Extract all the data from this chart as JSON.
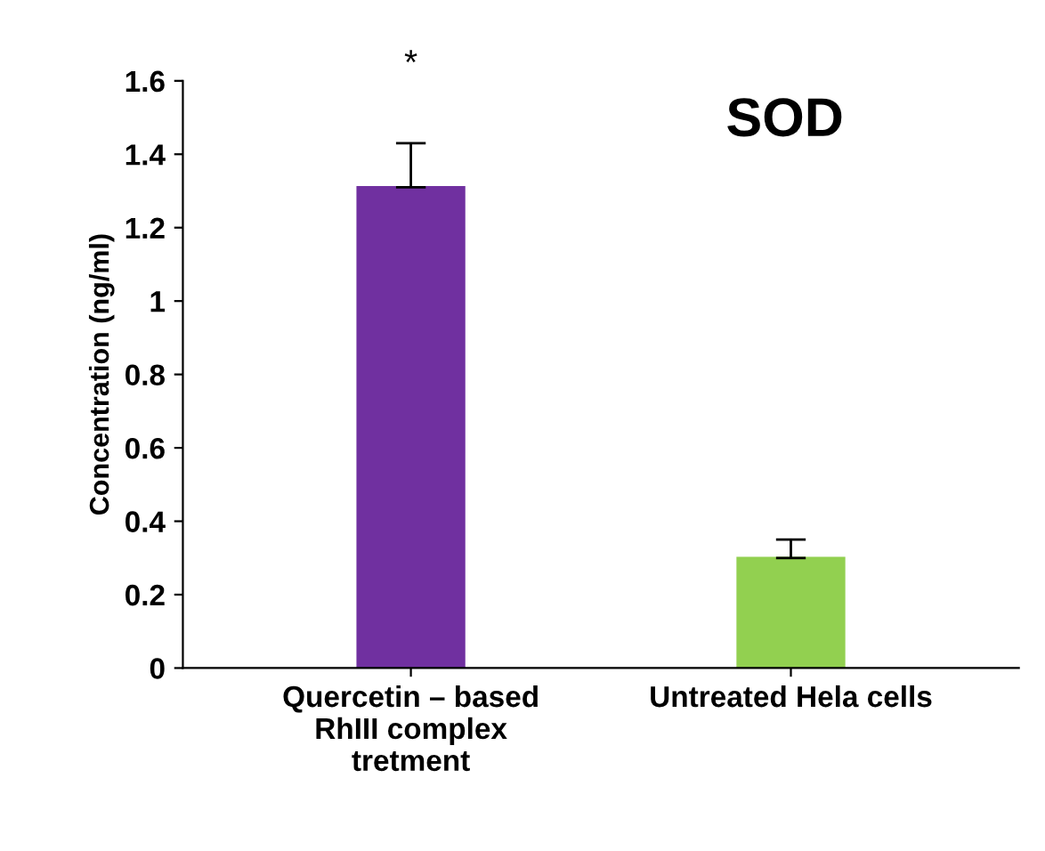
{
  "chart_data": {
    "type": "bar",
    "title": "SOD",
    "ylabel": "Concentration (ng/ml)",
    "categories": [
      "Quercetin – based\nRhIII complex\ntretment",
      "Untreated Hela cells"
    ],
    "values": [
      1.31,
      0.3
    ],
    "colors": [
      "#7030a0",
      "#92d050"
    ],
    "errors": [
      0.12,
      0.05
    ],
    "annotations": [
      {
        "text": "*",
        "x": "Quercetin – based\nRhIII complex\ntretment",
        "y": 1.43
      }
    ],
    "ylim": [
      0,
      1.6
    ],
    "yticks": [
      0,
      0.2,
      0.4,
      0.6,
      0.8,
      1,
      1.2,
      1.4,
      1.6
    ],
    "grid": false,
    "legend": false
  }
}
